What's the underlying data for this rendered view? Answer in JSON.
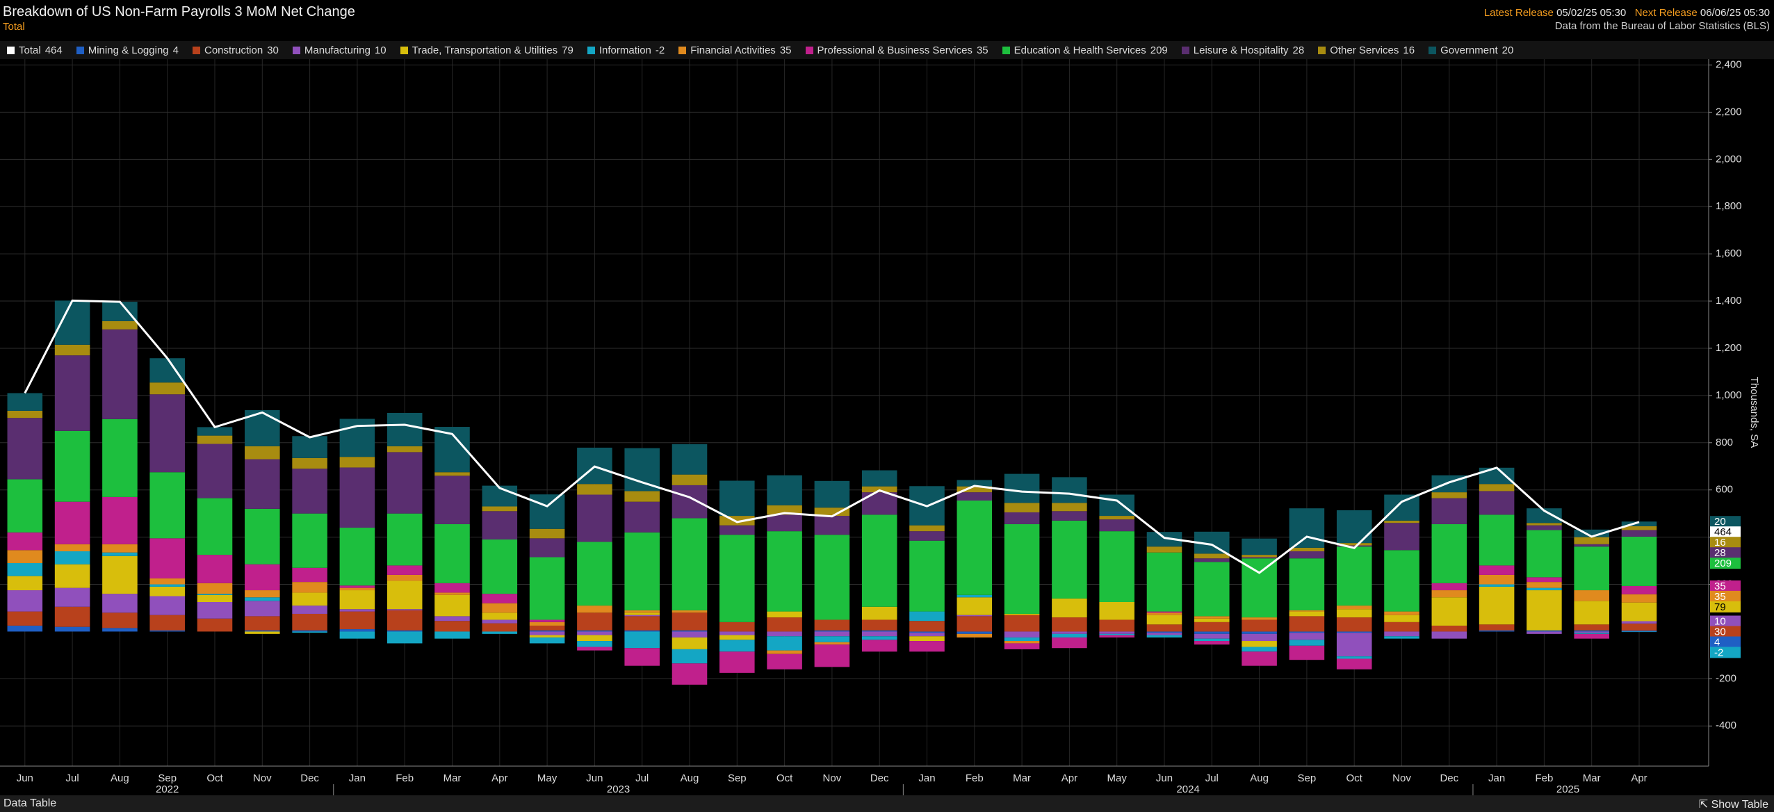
{
  "title": "Breakdown of US Non-Farm Payrolls 3 MoM Net Change",
  "subtitle": "Total",
  "latest_release_label": "Latest Release",
  "latest_release": "05/02/25 05:30",
  "next_release_label": "Next Release",
  "next_release": "06/06/25 05:30",
  "source": "Data from the Bureau of Labor Statistics (BLS)",
  "footer": {
    "left": "Data Table",
    "right": "Show Table"
  },
  "chart_data": {
    "type": "bar",
    "stacked": true,
    "y_label": "Thousands, SA",
    "grid": true,
    "categories": [
      "Jun",
      "Jul",
      "Aug",
      "Sep",
      "Oct",
      "Nov",
      "Dec",
      "Jan",
      "Feb",
      "Mar",
      "Apr",
      "May",
      "Jun",
      "Jul",
      "Aug",
      "Sep",
      "Oct",
      "Nov",
      "Dec",
      "Jan",
      "Feb",
      "Mar",
      "Apr",
      "May",
      "Jun",
      "Jul",
      "Aug",
      "Sep",
      "Oct",
      "Nov",
      "Dec",
      "Jan",
      "Feb",
      "Mar",
      "Apr"
    ],
    "years": [
      "2022",
      "2023",
      "2024",
      "2025"
    ],
    "ylim": [
      -570,
      2425
    ],
    "yticks": [
      -400,
      -200,
      200,
      400,
      600,
      800,
      {
        "value": 1000,
        "label": "1,000"
      },
      {
        "value": 1200,
        "label": "1,200"
      },
      {
        "value": 1400,
        "label": "1,400"
      },
      {
        "value": 1600,
        "label": "1,600"
      },
      {
        "value": 1800,
        "label": "1,800"
      },
      {
        "value": 2000,
        "label": "2,000"
      },
      {
        "value": 2200,
        "label": "2,200"
      },
      {
        "value": 2400,
        "label": "2,400"
      }
    ],
    "series": [
      {
        "name": "Total",
        "type": "line",
        "color": "#ffffff",
        "values": [
          1010,
          1402,
          1397,
          1158,
          866,
          928,
          823,
          871,
          876,
          837,
          608,
          531,
          699,
          632,
          569,
          464,
          502,
          488,
          598,
          531,
          617,
          593,
          584,
          555,
          397,
          368,
          249,
          402,
          354,
          550,
          632,
          694,
          512,
          402,
          464
        ]
      },
      {
        "name": "Mining & Logging",
        "color": "#1f5fc4",
        "values": [
          25,
          20,
          15,
          5,
          0,
          5,
          5,
          10,
          5,
          0,
          0,
          5,
          5,
          5,
          5,
          0,
          0,
          5,
          5,
          -5,
          -10,
          0,
          0,
          0,
          -5,
          -10,
          -10,
          -5,
          -5,
          0,
          0,
          5,
          5,
          5,
          4
        ]
      },
      {
        "name": "Construction",
        "color": "#b8411c",
        "values": [
          60,
          85,
          65,
          65,
          55,
          60,
          70,
          75,
          85,
          45,
          35,
          20,
          75,
          60,
          75,
          40,
          60,
          45,
          45,
          45,
          65,
          70,
          60,
          50,
          30,
          40,
          50,
          65,
          60,
          40,
          25,
          25,
          0,
          25,
          30
        ]
      },
      {
        "name": "Manufacturing",
        "color": "#9050bc",
        "values": [
          90,
          80,
          80,
          80,
          70,
          65,
          35,
          10,
          5,
          20,
          15,
          -15,
          -15,
          5,
          -25,
          -15,
          -20,
          -20,
          -20,
          -15,
          5,
          -25,
          -10,
          -10,
          -10,
          -20,
          -30,
          -30,
          -100,
          -20,
          -30,
          0,
          -10,
          -5,
          10
        ]
      },
      {
        "name": "Trade, Transportation & Utilities",
        "color": "#d8be0c",
        "values": [
          60,
          100,
          160,
          40,
          30,
          -10,
          55,
          80,
          120,
          90,
          30,
          -10,
          -25,
          10,
          -50,
          -20,
          25,
          0,
          55,
          -20,
          75,
          5,
          80,
          75,
          40,
          15,
          -25,
          20,
          35,
          30,
          120,
          160,
          170,
          100,
          79
        ]
      },
      {
        "name": "Information",
        "color": "#14a6c4",
        "values": [
          55,
          55,
          15,
          10,
          5,
          15,
          -5,
          -30,
          -50,
          -30,
          -10,
          -25,
          -25,
          -70,
          -60,
          -50,
          -60,
          -25,
          -15,
          40,
          10,
          -15,
          -15,
          -5,
          -10,
          -10,
          -20,
          -25,
          -10,
          -10,
          0,
          10,
          10,
          -5,
          -2
        ]
      },
      {
        "name": "Financial Activities",
        "color": "#e08a1e",
        "values": [
          55,
          30,
          35,
          25,
          45,
          30,
          45,
          10,
          25,
          10,
          40,
          15,
          30,
          10,
          10,
          0,
          -15,
          -10,
          0,
          0,
          -15,
          -10,
          0,
          0,
          10,
          10,
          10,
          5,
          15,
          15,
          30,
          40,
          25,
          45,
          35
        ]
      },
      {
        "name": "Professional & Business Services",
        "color": "#c0208c",
        "values": [
          75,
          180,
          200,
          170,
          120,
          110,
          60,
          10,
          40,
          40,
          40,
          10,
          -15,
          -75,
          -90,
          -90,
          -65,
          -95,
          -50,
          -45,
          0,
          -25,
          -45,
          -10,
          5,
          -15,
          -60,
          -60,
          -45,
          0,
          30,
          40,
          20,
          -20,
          35
        ]
      },
      {
        "name": "Education & Health Services",
        "color": "#1dbf3e",
        "values": [
          225,
          300,
          330,
          280,
          240,
          235,
          230,
          245,
          220,
          250,
          230,
          265,
          270,
          330,
          390,
          370,
          340,
          360,
          390,
          300,
          400,
          380,
          330,
          300,
          250,
          230,
          250,
          220,
          250,
          260,
          250,
          215,
          200,
          185,
          209
        ]
      },
      {
        "name": "Leisure & Hospitality",
        "color": "#5a2e70",
        "values": [
          260,
          320,
          380,
          330,
          230,
          210,
          190,
          255,
          260,
          205,
          120,
          80,
          200,
          130,
          140,
          40,
          70,
          80,
          95,
          40,
          35,
          50,
          40,
          50,
          0,
          15,
          5,
          30,
          5,
          115,
          110,
          100,
          20,
          10,
          28
        ]
      },
      {
        "name": "Other Services",
        "color": "#a88c10",
        "values": [
          30,
          45,
          35,
          50,
          35,
          55,
          45,
          45,
          25,
          15,
          20,
          40,
          45,
          45,
          45,
          40,
          40,
          35,
          25,
          25,
          25,
          40,
          35,
          15,
          25,
          20,
          10,
          15,
          10,
          10,
          25,
          30,
          10,
          30,
          16
        ]
      },
      {
        "name": "Government",
        "color": "#0c5660",
        "values": [
          75,
          187,
          82,
          103,
          36,
          153,
          93,
          161,
          141,
          192,
          88,
          146,
          154,
          182,
          129,
          149,
          127,
          113,
          68,
          166,
          27,
          123,
          109,
          90,
          62,
          93,
          69,
          167,
          139,
          110,
          72,
          69,
          62,
          32,
          20
        ]
      }
    ]
  }
}
